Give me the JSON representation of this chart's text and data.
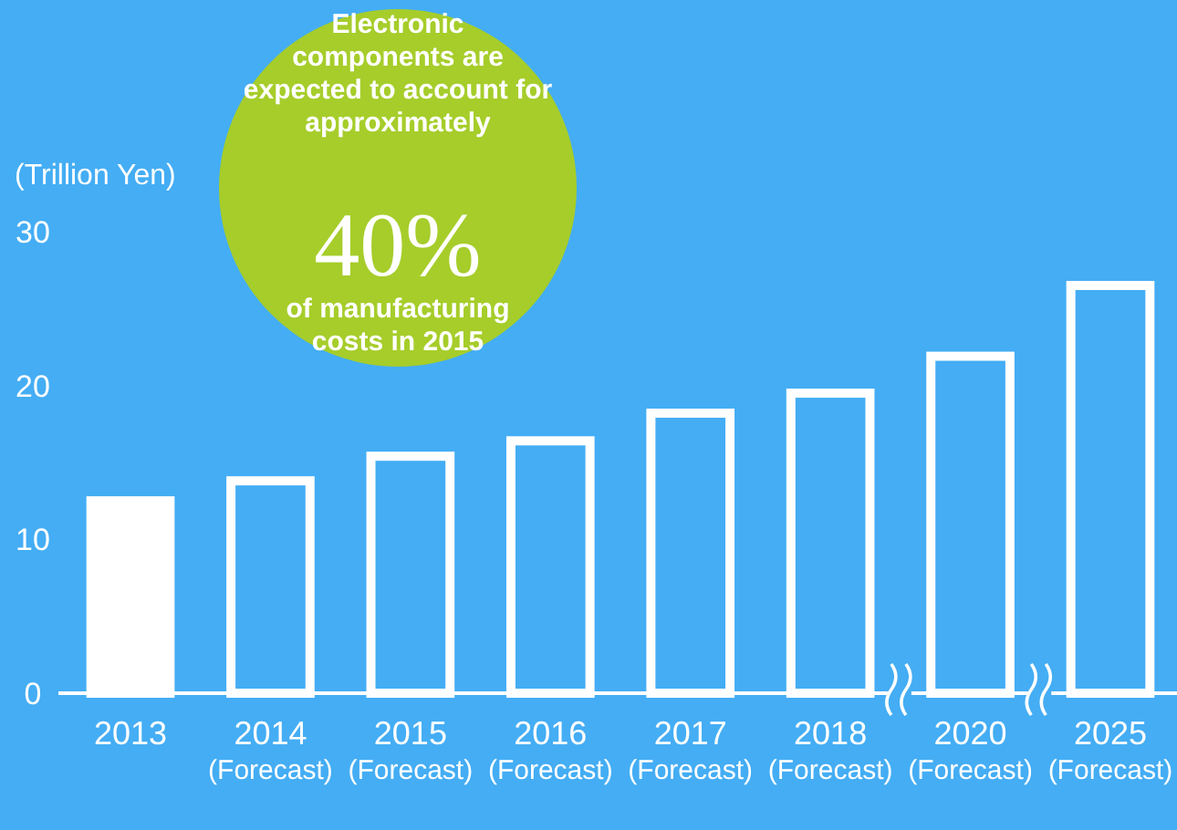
{
  "chart_data": {
    "type": "bar",
    "ylabel": "(Trillion Yen)",
    "categories": [
      "2013",
      "2014\n(Forecast)",
      "2015\n(Forecast)",
      "2016\n(Forecast)",
      "2017\n(Forecast)",
      "2018\n(Forecast)",
      "2020\n(Forecast)",
      "2025\n(Forecast)"
    ],
    "values": [
      12.8,
      14.1,
      15.7,
      16.7,
      18.5,
      19.8,
      22.2,
      26.8
    ],
    "colors": [
      "#ffffff",
      "#44adf4",
      "#44adf4",
      "#44adf4",
      "#44adf4",
      "#44adf4",
      "#44adf4",
      "#44adf4"
    ],
    "ylim": [
      0,
      30
    ],
    "yticks": [
      0,
      10,
      20,
      30
    ],
    "grid": false,
    "annotations": [
      "Electronic\ncomponents are\nexpected to account for\napproximately",
      "40%",
      "of manufacturing\ncosts in 2015"
    ]
  }
}
